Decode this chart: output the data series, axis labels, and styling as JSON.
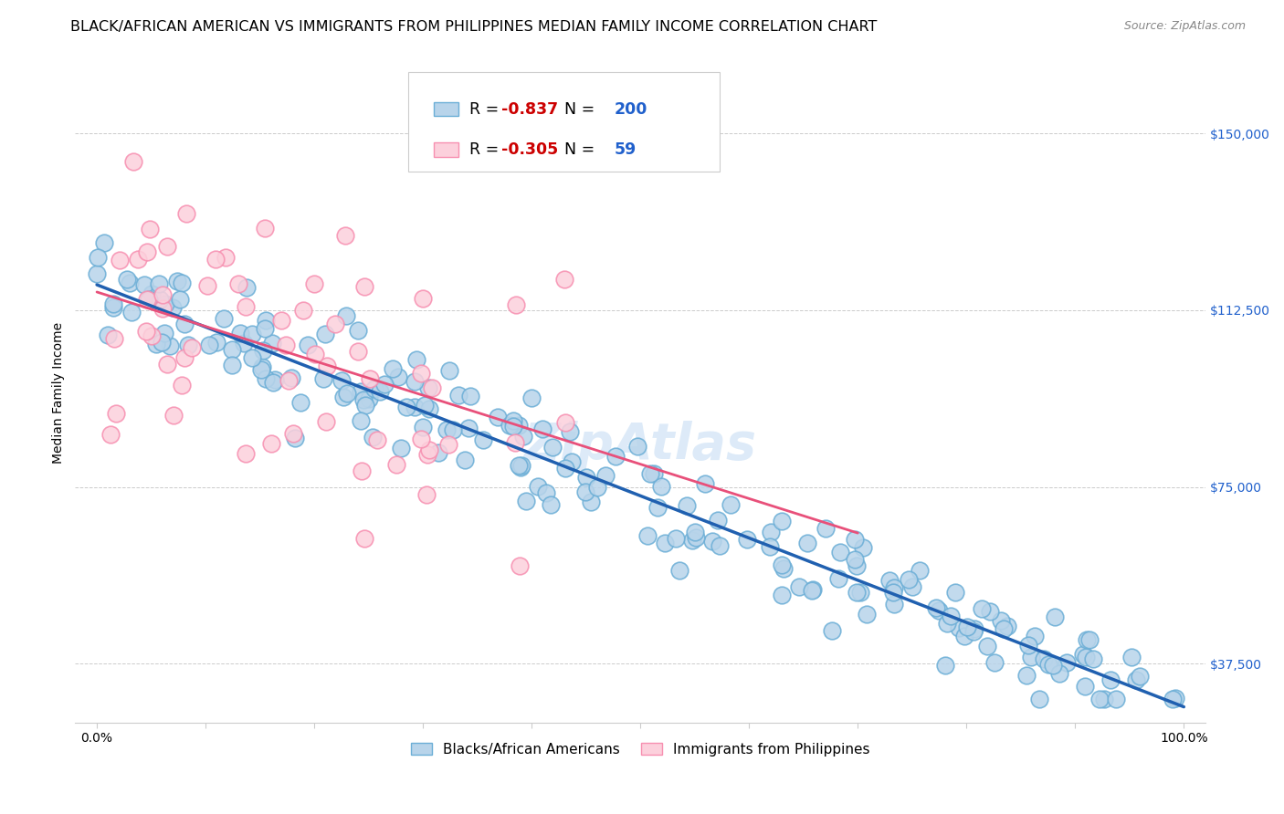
{
  "title": "BLACK/AFRICAN AMERICAN VS IMMIGRANTS FROM PHILIPPINES MEDIAN FAMILY INCOME CORRELATION CHART",
  "source": "Source: ZipAtlas.com",
  "ylabel": "Median Family Income",
  "xlim": [
    -0.02,
    1.02
  ],
  "ylim": [
    25000,
    165000
  ],
  "yticks": [
    37500,
    75000,
    112500,
    150000
  ],
  "ytick_labels": [
    "$37,500",
    "$75,000",
    "$112,500",
    "$150,000"
  ],
  "blue_R": -0.837,
  "blue_N": 200,
  "pink_R": -0.305,
  "pink_N": 59,
  "blue_fill": "#b8d4ea",
  "blue_edge": "#6baed6",
  "pink_fill": "#fcd0dc",
  "pink_edge": "#f78fb0",
  "blue_line_color": "#2060b0",
  "pink_line_color": "#e8507a",
  "legend_label_blue": "Blacks/African Americans",
  "legend_label_pink": "Immigrants from Philippines",
  "watermark": "ZipAtlas",
  "title_fontsize": 11.5,
  "axis_label_fontsize": 10,
  "tick_fontsize": 10,
  "legend_fontsize": 12,
  "r_color": "#cc0000",
  "n_color": "#2060cc",
  "ytick_color": "#2060cc"
}
